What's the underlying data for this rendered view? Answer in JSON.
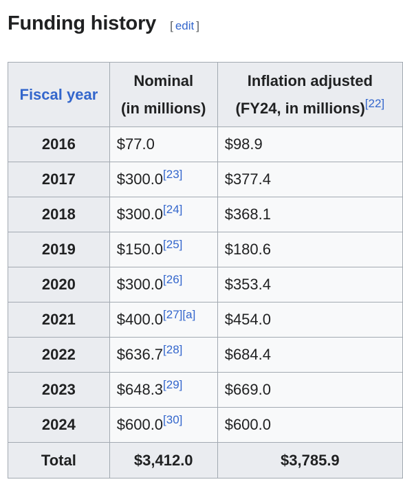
{
  "page": {
    "section_title": "Funding history",
    "edit_open": "[",
    "edit_label": "edit",
    "edit_close": "]"
  },
  "table": {
    "headers": {
      "fiscal_year": "Fiscal year",
      "nominal_line1": "Nominal",
      "nominal_line2": "(in millions)",
      "inflation_line1": "Inflation adjusted",
      "inflation_line2": "(FY24, in millions)",
      "inflation_ref": "[22]"
    },
    "rows": [
      {
        "year": "2016",
        "nominal": "$77.0",
        "nominal_ref": "",
        "adjusted": "$98.9"
      },
      {
        "year": "2017",
        "nominal": "$300.0",
        "nominal_ref": "[23]",
        "adjusted": "$377.4"
      },
      {
        "year": "2018",
        "nominal": "$300.0",
        "nominal_ref": "[24]",
        "adjusted": "$368.1"
      },
      {
        "year": "2019",
        "nominal": "$150.0",
        "nominal_ref": "[25]",
        "adjusted": "$180.6"
      },
      {
        "year": "2020",
        "nominal": "$300.0",
        "nominal_ref": "[26]",
        "adjusted": "$353.4"
      },
      {
        "year": "2021",
        "nominal": "$400.0",
        "nominal_ref": "[27][a]",
        "adjusted": "$454.0"
      },
      {
        "year": "2022",
        "nominal": "$636.7",
        "nominal_ref": "[28]",
        "adjusted": "$684.4"
      },
      {
        "year": "2023",
        "nominal": "$648.3",
        "nominal_ref": "[29]",
        "adjusted": "$669.0"
      },
      {
        "year": "2024",
        "nominal": "$600.0",
        "nominal_ref": "[30]",
        "adjusted": "$600.0"
      }
    ],
    "total": {
      "label": "Total",
      "nominal": "$3,412.0",
      "adjusted": "$3,785.9"
    }
  },
  "colors": {
    "link": "#3366cc",
    "header_bg": "#eaecf0",
    "cell_bg": "#f8f9fa",
    "border": "#a2a9b1",
    "text": "#202122"
  }
}
